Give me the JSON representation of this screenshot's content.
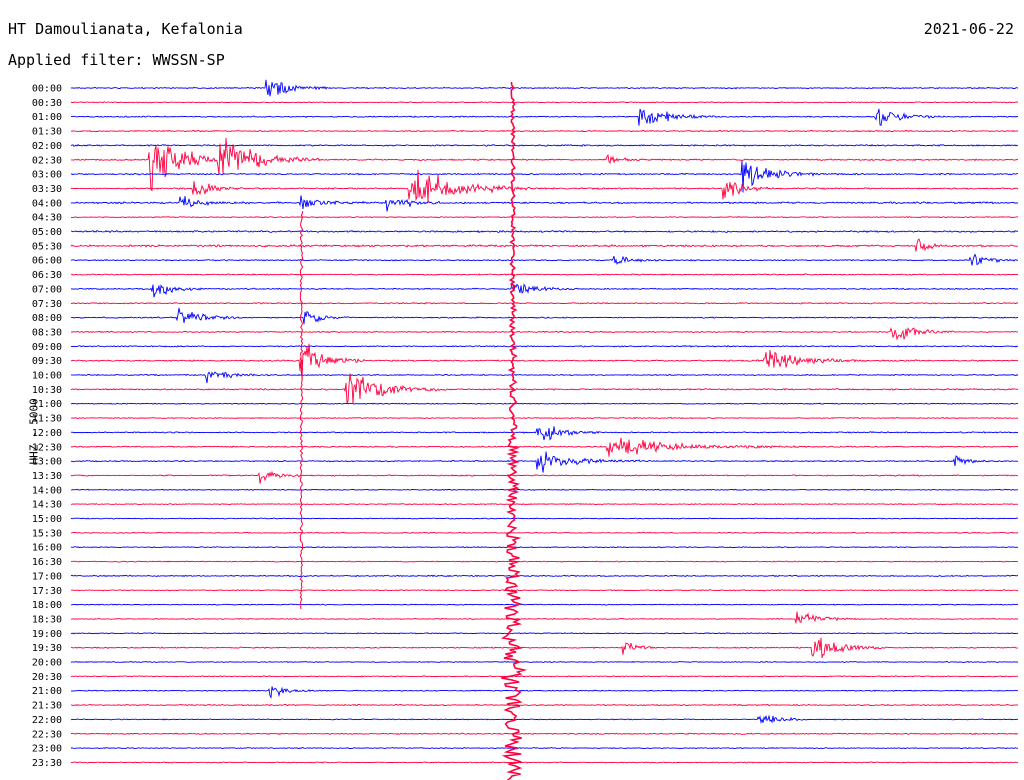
{
  "header": {
    "station": "HT Damoulianata, Kefalonia",
    "date": "2021-06-22",
    "filter": "Applied filter: WWSSN-SP",
    "channel": "HHZ - 5000"
  },
  "colors": {
    "blue": "#0000ff",
    "red": "#ff0040",
    "text": "#000000"
  },
  "chart_data": {
    "type": "line",
    "title": "HT Damoulianata, Kefalonia",
    "subtitle": "Applied filter: WWSSN-SP",
    "ylabel": "HHZ - 5000",
    "x_unit": "minutes within each 30-minute trace line",
    "xlim": [
      0,
      30
    ],
    "rows": [
      {
        "label": "00:00",
        "color": "blue",
        "noise": 0.5,
        "events": [
          {
            "t": 6.2,
            "amp": 4,
            "dur": 1.0
          }
        ]
      },
      {
        "label": "00:30",
        "color": "red",
        "noise": 0.4,
        "events": []
      },
      {
        "label": "01:00",
        "color": "blue",
        "noise": 0.5,
        "events": [
          {
            "t": 18.0,
            "amp": 4,
            "dur": 1.2
          },
          {
            "t": 25.5,
            "amp": 3,
            "dur": 1.0
          }
        ]
      },
      {
        "label": "01:30",
        "color": "red",
        "noise": 0.5,
        "events": []
      },
      {
        "label": "02:00",
        "color": "blue",
        "noise": 0.6,
        "events": []
      },
      {
        "label": "02:30",
        "color": "red",
        "noise": 0.6,
        "events": [
          {
            "t": 2.5,
            "amp": 8,
            "dur": 1.6
          },
          {
            "t": 4.7,
            "amp": 7,
            "dur": 1.6
          },
          {
            "t": 17.0,
            "amp": 2,
            "dur": 0.6
          }
        ]
      },
      {
        "label": "03:00",
        "color": "blue",
        "noise": 0.6,
        "events": [
          {
            "t": 21.3,
            "amp": 5,
            "dur": 1.2
          }
        ]
      },
      {
        "label": "03:30",
        "color": "red",
        "noise": 0.6,
        "events": [
          {
            "t": 3.9,
            "amp": 3,
            "dur": 0.8
          },
          {
            "t": 10.7,
            "amp": 7,
            "dur": 2.0
          },
          {
            "t": 20.7,
            "amp": 3,
            "dur": 0.8
          }
        ]
      },
      {
        "label": "04:00",
        "color": "blue",
        "noise": 0.7,
        "events": [
          {
            "t": 3.5,
            "amp": 2,
            "dur": 1.0
          },
          {
            "t": 7.3,
            "amp": 2,
            "dur": 1.0
          },
          {
            "t": 10.0,
            "amp": 2,
            "dur": 1.2
          }
        ]
      },
      {
        "label": "04:30",
        "color": "red",
        "noise": 0.4,
        "events": []
      },
      {
        "label": "05:00",
        "color": "blue",
        "noise": 0.7,
        "events": []
      },
      {
        "label": "05:30",
        "color": "red",
        "noise": 0.8,
        "events": [
          {
            "t": 26.8,
            "amp": 2,
            "dur": 0.6
          }
        ]
      },
      {
        "label": "06:00",
        "color": "blue",
        "noise": 0.5,
        "events": [
          {
            "t": 17.2,
            "amp": 1.5,
            "dur": 0.8
          },
          {
            "t": 28.5,
            "amp": 2,
            "dur": 0.8
          }
        ]
      },
      {
        "label": "06:30",
        "color": "red",
        "noise": 0.5,
        "events": []
      },
      {
        "label": "07:00",
        "color": "blue",
        "noise": 0.5,
        "events": [
          {
            "t": 2.6,
            "amp": 3,
            "dur": 0.8
          },
          {
            "t": 14.0,
            "amp": 2,
            "dur": 1.0
          }
        ]
      },
      {
        "label": "07:30",
        "color": "red",
        "noise": 0.5,
        "events": []
      },
      {
        "label": "08:00",
        "color": "blue",
        "noise": 0.5,
        "events": [
          {
            "t": 3.4,
            "amp": 3,
            "dur": 1.0
          },
          {
            "t": 7.4,
            "amp": 2,
            "dur": 0.8
          }
        ]
      },
      {
        "label": "08:30",
        "color": "red",
        "noise": 0.5,
        "events": [
          {
            "t": 26.0,
            "amp": 4,
            "dur": 1.0
          }
        ]
      },
      {
        "label": "09:00",
        "color": "blue",
        "noise": 0.5,
        "events": []
      },
      {
        "label": "09:30",
        "color": "red",
        "noise": 0.6,
        "events": [
          {
            "t": 7.3,
            "amp": 6,
            "dur": 1.0
          },
          {
            "t": 22.0,
            "amp": 3,
            "dur": 1.6
          }
        ]
      },
      {
        "label": "10:00",
        "color": "blue",
        "noise": 0.5,
        "events": [
          {
            "t": 4.3,
            "amp": 2,
            "dur": 1.0
          }
        ]
      },
      {
        "label": "10:30",
        "color": "red",
        "noise": 0.6,
        "events": [
          {
            "t": 8.7,
            "amp": 5,
            "dur": 1.6
          }
        ]
      },
      {
        "label": "11:00",
        "color": "blue",
        "noise": 0.4,
        "events": []
      },
      {
        "label": "11:30",
        "color": "red",
        "noise": 0.4,
        "events": []
      },
      {
        "label": "12:00",
        "color": "blue",
        "noise": 0.5,
        "events": [
          {
            "t": 14.8,
            "amp": 3,
            "dur": 1.0
          }
        ]
      },
      {
        "label": "12:30",
        "color": "red",
        "noise": 0.5,
        "events": [
          {
            "t": 17.0,
            "amp": 3,
            "dur": 3.0
          }
        ]
      },
      {
        "label": "13:00",
        "color": "blue",
        "noise": 0.5,
        "events": [
          {
            "t": 14.8,
            "amp": 3,
            "dur": 1.6
          },
          {
            "t": 28.0,
            "amp": 2,
            "dur": 0.6
          }
        ]
      },
      {
        "label": "13:30",
        "color": "red",
        "noise": 0.5,
        "events": [
          {
            "t": 6.0,
            "amp": 2,
            "dur": 0.8
          }
        ]
      },
      {
        "label": "14:00",
        "color": "blue",
        "noise": 0.4,
        "events": []
      },
      {
        "label": "14:30",
        "color": "red",
        "noise": 0.4,
        "events": []
      },
      {
        "label": "15:00",
        "color": "blue",
        "noise": 0.4,
        "events": []
      },
      {
        "label": "15:30",
        "color": "red",
        "noise": 0.4,
        "events": []
      },
      {
        "label": "16:00",
        "color": "blue",
        "noise": 0.4,
        "events": []
      },
      {
        "label": "16:30",
        "color": "red",
        "noise": 0.4,
        "events": []
      },
      {
        "label": "17:00",
        "color": "blue",
        "noise": 0.5,
        "events": []
      },
      {
        "label": "17:30",
        "color": "red",
        "noise": 0.4,
        "events": []
      },
      {
        "label": "18:00",
        "color": "blue",
        "noise": 0.4,
        "events": []
      },
      {
        "label": "18:30",
        "color": "red",
        "noise": 0.4,
        "events": [
          {
            "t": 23.0,
            "amp": 2,
            "dur": 1.0
          }
        ]
      },
      {
        "label": "19:00",
        "color": "blue",
        "noise": 0.4,
        "events": []
      },
      {
        "label": "19:30",
        "color": "red",
        "noise": 0.5,
        "events": [
          {
            "t": 17.5,
            "amp": 2,
            "dur": 0.6
          },
          {
            "t": 23.5,
            "amp": 4,
            "dur": 1.2
          }
        ]
      },
      {
        "label": "20:00",
        "color": "blue",
        "noise": 0.4,
        "events": []
      },
      {
        "label": "20:30",
        "color": "red",
        "noise": 0.4,
        "events": []
      },
      {
        "label": "21:00",
        "color": "blue",
        "noise": 0.4,
        "events": [
          {
            "t": 6.3,
            "amp": 2,
            "dur": 0.8
          }
        ]
      },
      {
        "label": "21:30",
        "color": "red",
        "noise": 0.5,
        "events": []
      },
      {
        "label": "22:00",
        "color": "blue",
        "noise": 0.4,
        "events": [
          {
            "t": 21.8,
            "amp": 2,
            "dur": 0.8
          }
        ]
      },
      {
        "label": "22:30",
        "color": "red",
        "noise": 0.5,
        "events": []
      },
      {
        "label": "23:00",
        "color": "blue",
        "noise": 0.4,
        "events": []
      },
      {
        "label": "23:30",
        "color": "red",
        "noise": 0.4,
        "events": []
      }
    ],
    "major_events": [
      {
        "name": "local-quake-0925",
        "start_row": 9,
        "t": 7.3,
        "end_row": 36,
        "color": "red"
      },
      {
        "name": "large-quake-0030",
        "start_row": 0,
        "t": 14.0,
        "end_row": 48,
        "color": "red"
      }
    ]
  }
}
